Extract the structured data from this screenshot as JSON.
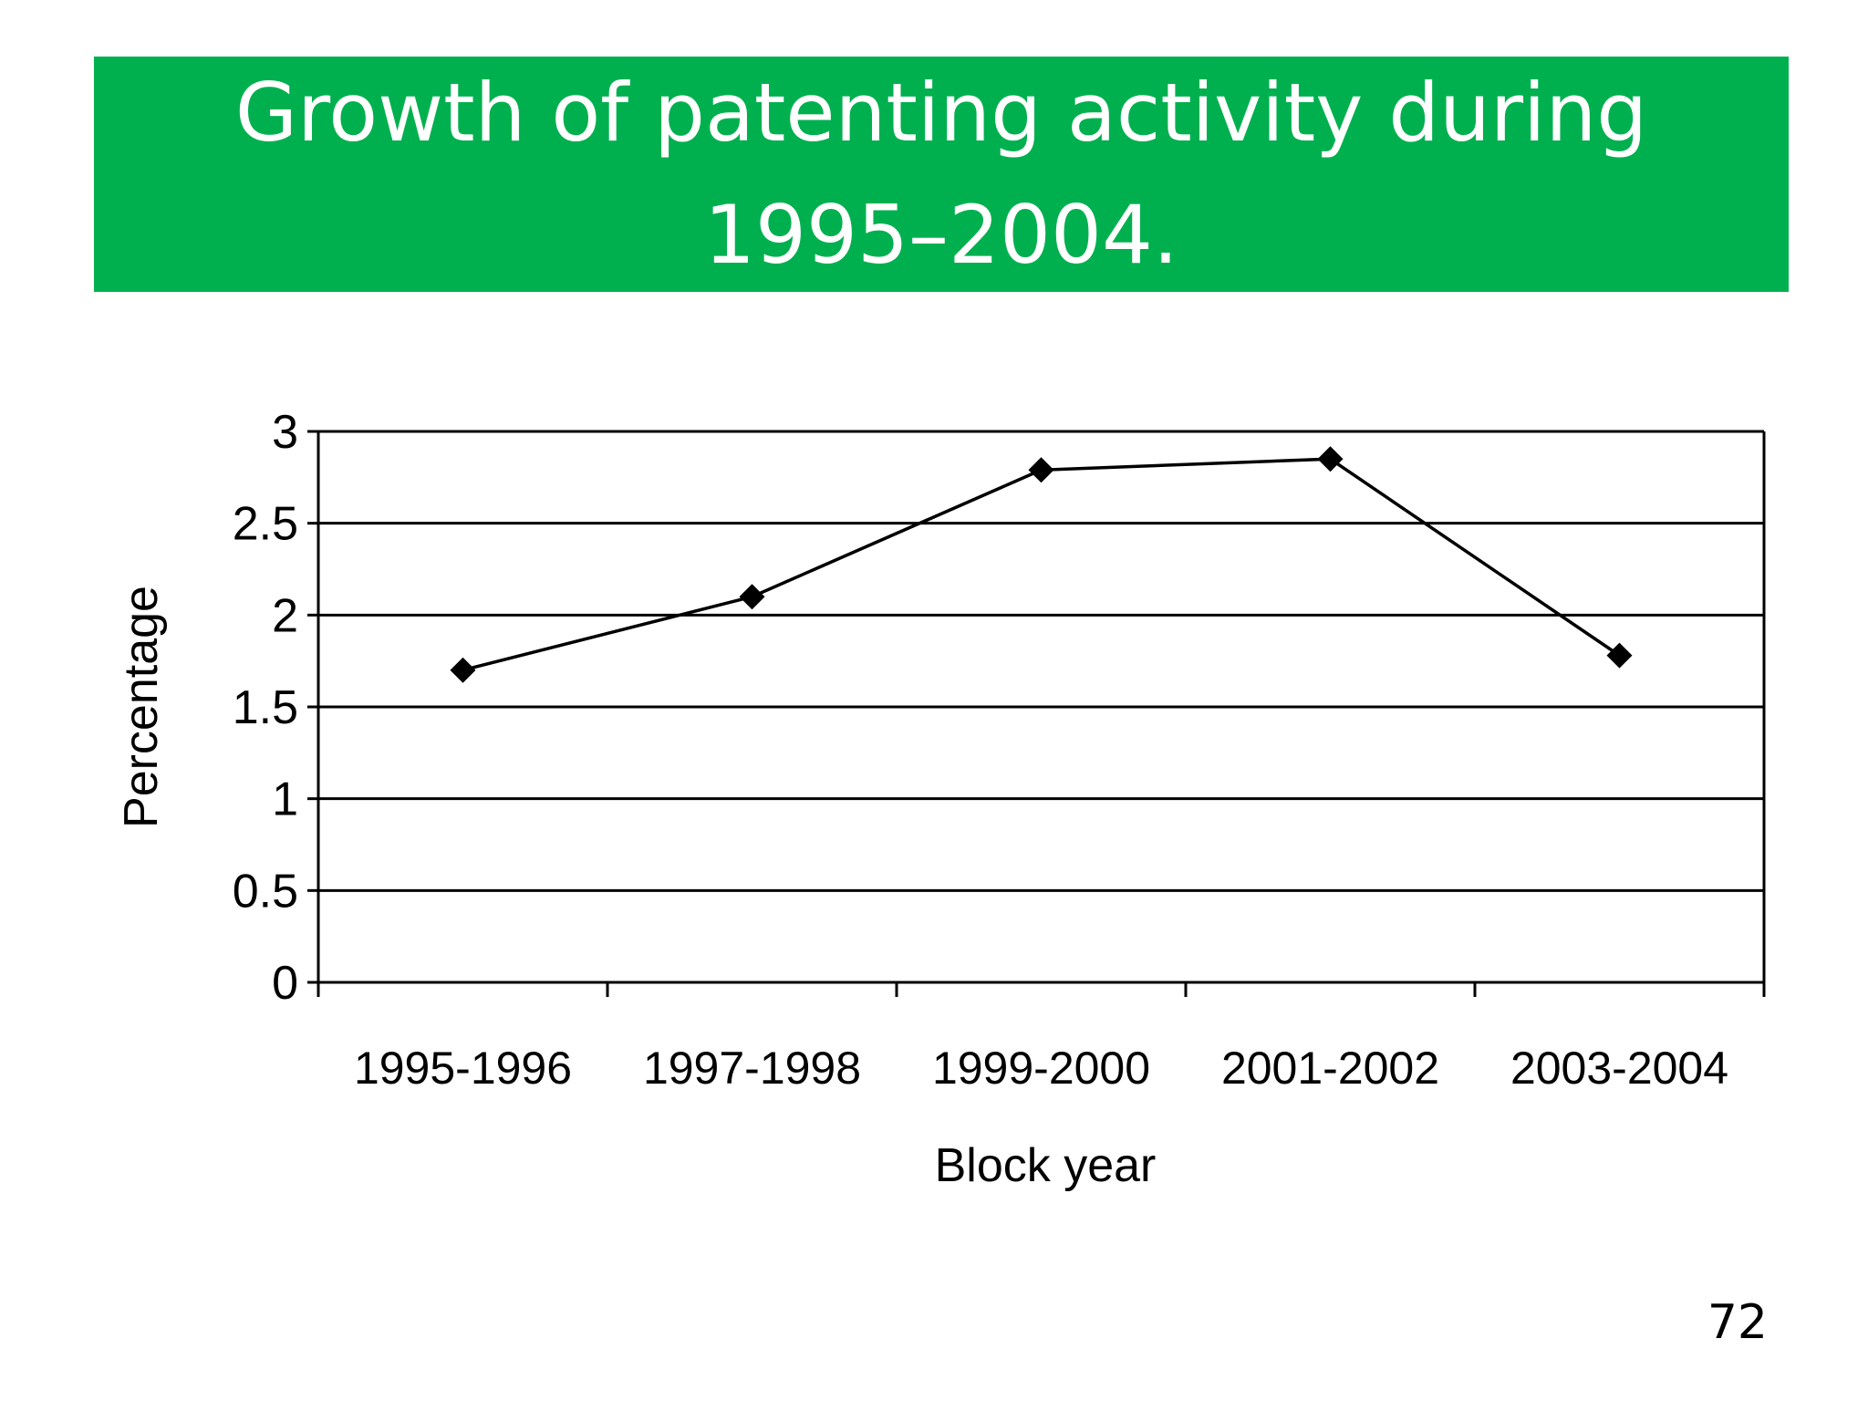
{
  "slide": {
    "title": "Growth of patenting activity during 1995–2004.",
    "page_number": "72"
  },
  "colors": {
    "banner": "#00b04f",
    "title_text": "#ffffff",
    "line": "#000000"
  },
  "chart_data": {
    "type": "line",
    "title": "",
    "xlabel": "Block year",
    "ylabel": "Percentage",
    "categories": [
      "1995-1996",
      "1997-1998",
      "1999-2000",
      "2001-2002",
      "2003-2004"
    ],
    "series": [
      {
        "values": [
          1.7,
          2.1,
          2.79,
          2.85,
          1.78
        ],
        "marker": "diamond"
      }
    ],
    "ylim": [
      0,
      3
    ],
    "yticks": [
      0,
      0.5,
      1,
      1.5,
      2,
      2.5,
      3
    ],
    "ytick_labels": [
      "0",
      "0.5",
      "1",
      "1.5",
      "2",
      "2.5",
      "3"
    ],
    "grid": "horizontal",
    "legend": "none"
  }
}
